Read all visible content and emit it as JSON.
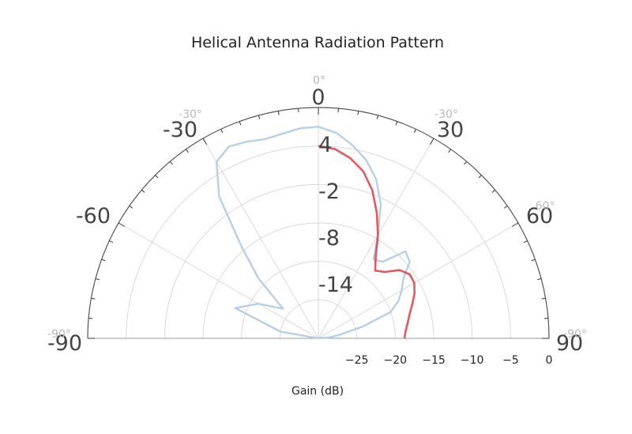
{
  "chart_data": {
    "type": "polar-line",
    "title": "Helical Antenna Radiation Pattern",
    "xlabel": "Gain (dB)",
    "angle_range_deg": [
      -90,
      90
    ],
    "angle_zero": "top",
    "radial_range_db": [
      -30,
      0
    ],
    "radial_tick_labels": [
      "−25",
      "−20",
      "−15",
      "−10",
      "−5",
      "0"
    ],
    "radial_ticks": [
      -25,
      -20,
      -15,
      -10,
      -5,
      0
    ],
    "inner_gain_labels": [
      "4",
      "-2",
      "-8",
      "-14"
    ],
    "inner_gain_values": [
      4,
      -2,
      -8,
      -14
    ],
    "angle_labels_large": [
      "0",
      "-30",
      "30",
      "-60",
      "60",
      "-90",
      "90"
    ],
    "angle_labels_small": [
      "0°",
      "-30°",
      "-30°",
      "60°",
      "-90°",
      "-90°"
    ],
    "series": [
      {
        "color": "#b5d0e8",
        "theta_deg": [
          -90,
          -80,
          -70,
          -60,
          -50,
          -45,
          -40,
          -35,
          -30,
          -25,
          -20,
          -15,
          -10,
          -5,
          0,
          5,
          10,
          15,
          20,
          25,
          30,
          35,
          40,
          45,
          50,
          55,
          60,
          65,
          70,
          75,
          80,
          85,
          90
        ],
        "gain_db": [
          -30,
          -25,
          -18.5,
          -21,
          -24,
          -19,
          -14.5,
          -7.5,
          -3.5,
          -2.5,
          -2.8,
          -3.2,
          -3,
          -2.6,
          -2.5,
          -3.2,
          -4.5,
          -6,
          -8,
          -10.8,
          -14.5,
          -17.5,
          -17,
          -14,
          -14.5,
          -16.5,
          -17.5,
          -18.5,
          -20,
          -24,
          -27,
          -28.5,
          -30
        ]
      },
      {
        "color": "#e0474c",
        "theta_deg": [
          0,
          5,
          10,
          15,
          20,
          25,
          30,
          35,
          40,
          45,
          50,
          55,
          60,
          65,
          70,
          75,
          80,
          85,
          90
        ],
        "gain_db": [
          -5,
          -5.3,
          -6.2,
          -7.5,
          -9.5,
          -12,
          -14.5,
          -17,
          -18.5,
          -17.8,
          -16.2,
          -15.5,
          -15.6,
          -16.2,
          -17,
          -17.7,
          -18.2,
          -18.6,
          -18.8
        ]
      }
    ]
  }
}
